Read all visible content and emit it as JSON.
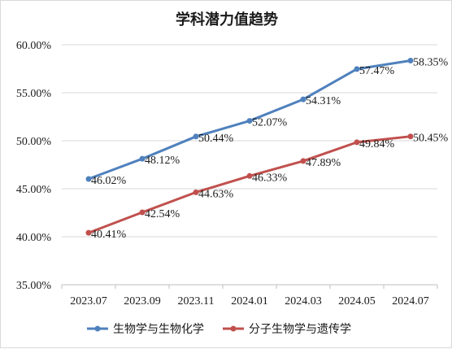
{
  "chart_data": {
    "type": "line",
    "title": "学科潜力值趋势",
    "categories": [
      "2023.07",
      "2023.09",
      "2023.11",
      "2024.01",
      "2024.03",
      "2024.05",
      "2024.07"
    ],
    "y_ticks": [
      "35.00%",
      "40.00%",
      "45.00%",
      "50.00%",
      "55.00%",
      "60.00%"
    ],
    "ylim": [
      35,
      60
    ],
    "grid": true,
    "legend_position": "bottom",
    "series": [
      {
        "name": "生物学与生物化学",
        "color": "#4f81bd",
        "values": [
          46.02,
          48.12,
          50.44,
          52.07,
          54.31,
          57.47,
          58.35
        ],
        "labels": [
          "46.02%",
          "48.12%",
          "50.44%",
          "52.07%",
          "54.31%",
          "57.47%",
          "58.35%"
        ]
      },
      {
        "name": "分子生物学与遗传学",
        "color": "#c0504d",
        "values": [
          40.41,
          42.54,
          44.63,
          46.33,
          47.89,
          49.84,
          50.45
        ],
        "labels": [
          "40.41%",
          "42.54%",
          "44.63%",
          "46.33%",
          "47.89%",
          "49.84%",
          "50.45%"
        ]
      }
    ]
  }
}
